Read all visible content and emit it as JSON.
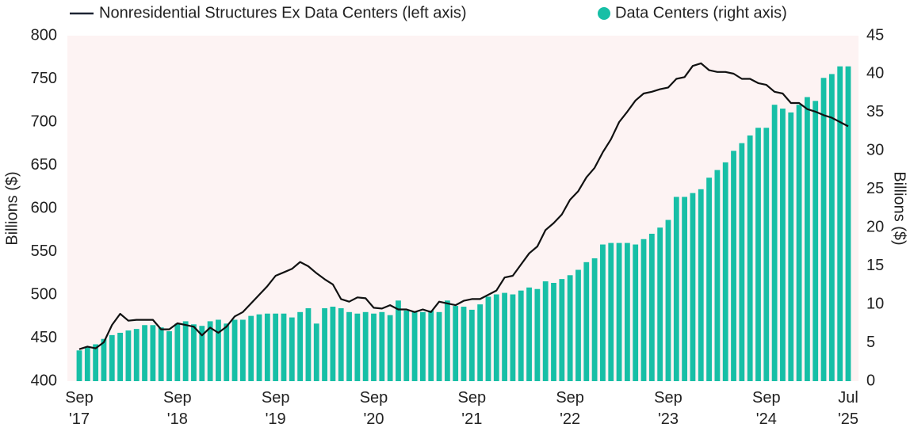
{
  "chart_data": {
    "type": "combo",
    "y_label": "Billions ($)",
    "y2_label": "Billions ($)",
    "categories": [
      "Sep '17",
      null,
      null,
      null,
      null,
      null,
      null,
      null,
      null,
      null,
      null,
      null,
      "Sep '18",
      null,
      null,
      null,
      null,
      null,
      null,
      null,
      null,
      null,
      null,
      null,
      "Sep '19",
      null,
      null,
      null,
      null,
      null,
      null,
      null,
      null,
      null,
      null,
      null,
      "Sep '20",
      null,
      null,
      null,
      null,
      null,
      null,
      null,
      null,
      null,
      null,
      null,
      "Sep '21",
      null,
      null,
      null,
      null,
      null,
      null,
      null,
      null,
      null,
      null,
      null,
      "Sep '22",
      null,
      null,
      null,
      null,
      null,
      null,
      null,
      null,
      null,
      null,
      null,
      "Sep '23",
      null,
      null,
      null,
      null,
      null,
      null,
      null,
      null,
      null,
      null,
      null,
      "Sep '24",
      null,
      null,
      null,
      null,
      null,
      null,
      null,
      null,
      null,
      "Jul '25"
    ],
    "series": [
      {
        "name": "Nonresidential Structures Ex Data Centers (left axis)",
        "type": "line",
        "color": "#111111",
        "values": [
          437,
          440,
          438,
          445,
          465,
          478,
          470,
          471,
          471,
          471,
          460,
          460,
          467,
          465,
          463,
          453,
          462,
          456,
          463,
          475,
          480,
          490,
          500,
          510,
          522,
          526,
          530,
          538,
          533,
          525,
          518,
          512,
          495,
          492,
          497,
          496,
          485,
          484,
          488,
          483,
          483,
          480,
          483,
          480,
          492,
          490,
          488,
          493,
          495,
          495,
          500,
          505,
          520,
          522,
          535,
          548,
          556,
          575,
          583,
          593,
          610,
          620,
          636,
          647,
          665,
          680,
          700,
          712,
          725,
          733,
          735,
          738,
          740,
          750,
          752,
          765,
          768,
          760,
          758,
          758,
          756,
          750,
          750,
          745,
          743,
          735,
          733,
          722,
          722,
          715,
          712,
          708,
          705,
          700,
          695
        ]
      },
      {
        "name": "Data Centers (right axis)",
        "type": "bar",
        "axis": "y2",
        "color": "#17bfa6",
        "values": [
          4.0,
          4.4,
          4.8,
          5.5,
          6.0,
          6.3,
          6.6,
          6.8,
          7.3,
          7.3,
          7.0,
          6.5,
          7.5,
          7.8,
          7.4,
          7.2,
          7.8,
          8.0,
          7.5,
          8.0,
          8.0,
          8.5,
          8.7,
          8.8,
          8.8,
          8.8,
          8.3,
          9.0,
          9.5,
          7.5,
          9.5,
          9.7,
          9.5,
          9.0,
          8.8,
          9.0,
          8.8,
          9.0,
          8.6,
          10.5,
          9.2,
          9.0,
          9.0,
          9.2,
          9.0,
          10.5,
          9.8,
          9.7,
          9.3,
          10.0,
          11.0,
          11.3,
          11.5,
          11.3,
          11.8,
          12.2,
          12.0,
          13.0,
          12.8,
          13.3,
          13.8,
          14.5,
          15.5,
          16.0,
          17.8,
          18.0,
          18.0,
          18.0,
          17.8,
          18.5,
          19.2,
          20.0,
          21.0,
          24.0,
          24.0,
          24.5,
          25.0,
          26.5,
          27.5,
          28.5,
          30.0,
          31.0,
          32.0,
          33.0,
          33.0,
          36.0,
          35.5,
          35.0,
          36.0,
          37.0,
          36.5,
          39.5,
          40.0,
          41.0,
          41.0
        ]
      }
    ],
    "ylim": [
      400,
      800
    ],
    "yticks": [
      400,
      450,
      500,
      550,
      600,
      650,
      700,
      750,
      800
    ],
    "y2lim": [
      0,
      45
    ],
    "y2ticks": [
      0,
      5,
      10,
      15,
      20,
      25,
      30,
      35,
      40,
      45
    ],
    "background": "#fdf3f3"
  }
}
